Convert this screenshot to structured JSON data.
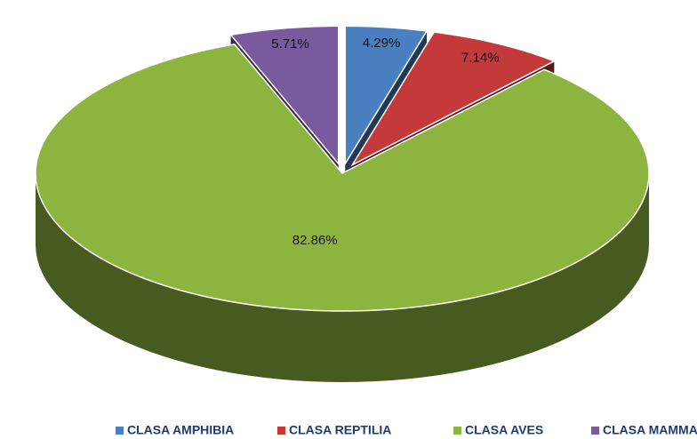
{
  "chart_data": {
    "type": "pie",
    "categories": [
      "CLASA AMPHIBIA",
      "CLASA REPTILIA",
      "CLASA AVES",
      "CLASA MAMMALIA"
    ],
    "values": [
      4.29,
      7.14,
      82.86,
      5.71
    ],
    "value_labels": [
      "4.29%",
      "7.14%",
      "82.86%",
      "5.71%"
    ],
    "colors": [
      "#4a7fc1",
      "#c4393a",
      "#8db43e",
      "#7a5a9e"
    ],
    "legend": "bottom"
  }
}
